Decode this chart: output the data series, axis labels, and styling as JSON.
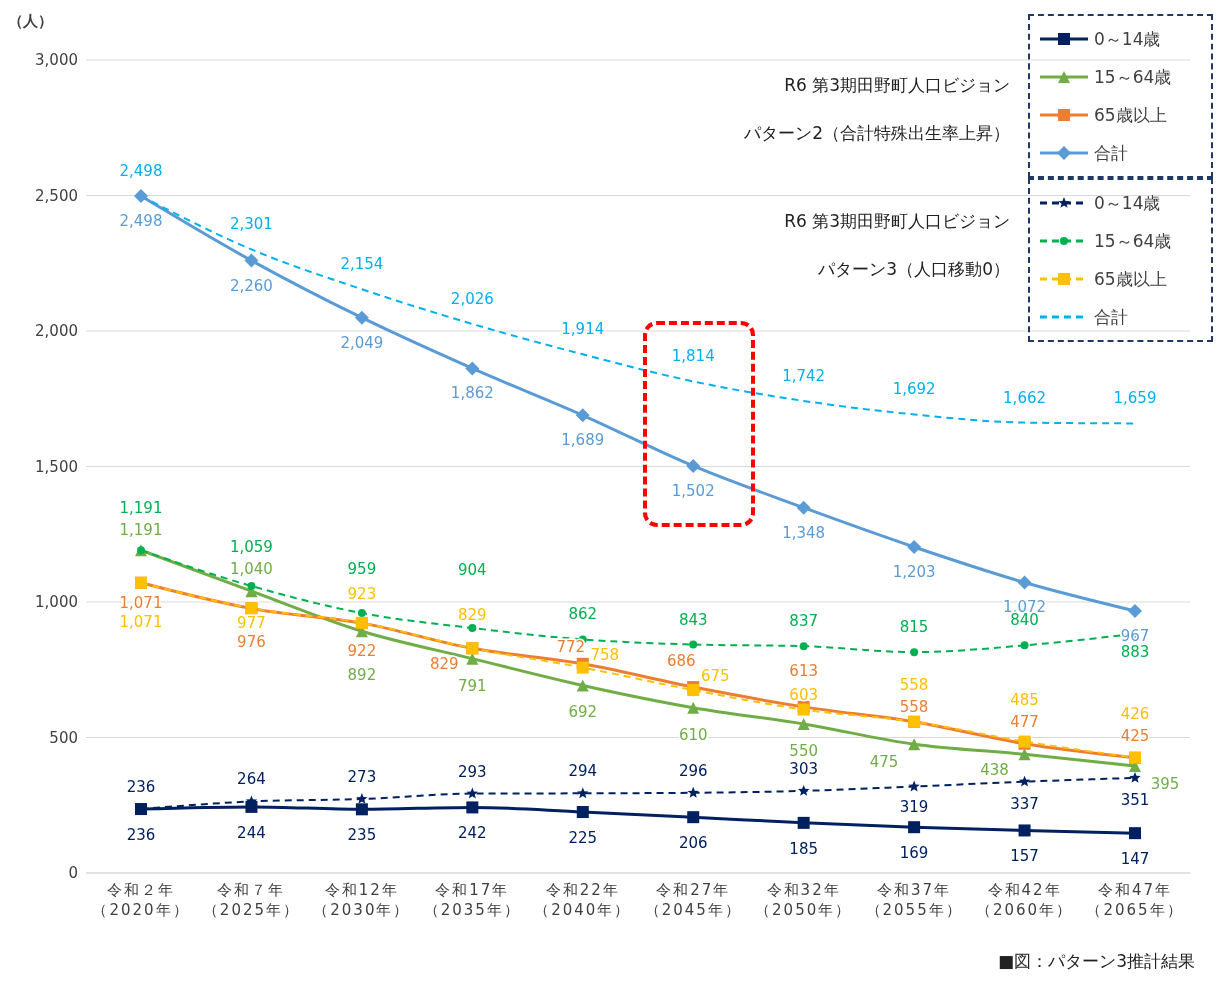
{
  "chart_data": {
    "type": "line",
    "ylabel": "（人）",
    "categories": [
      "令和２年（2020年）",
      "令和７年（2025年）",
      "令和12年（2030年）",
      "令和17年（2035年）",
      "令和22年（2040年）",
      "令和27年（2045年）",
      "令和32年（2050年）",
      "令和37年（2055年）",
      "令和42年（2060年）",
      "令和47年（2065年）"
    ],
    "series": [
      {
        "name": "0～14歳",
        "color": "#002060",
        "marker": "square",
        "line_style": "solid",
        "values": [
          236,
          244,
          235,
          242,
          225,
          206,
          185,
          169,
          157,
          147
        ],
        "value_labels": [
          "236",
          "244",
          "235",
          "242",
          "225",
          "206",
          "185",
          "169",
          "157",
          "147"
        ]
      },
      {
        "name": "15～64歳",
        "color": "#70ad47",
        "marker": "triangle",
        "line_style": "solid",
        "values": [
          1191,
          1040,
          892,
          791,
          692,
          610,
          550,
          475,
          438,
          395
        ],
        "value_labels": [
          "1,191",
          "1,040",
          "892",
          "791",
          "692",
          "610",
          "550",
          "475",
          "438",
          "395"
        ]
      },
      {
        "name": "65歳以上",
        "color": "#ed7d31",
        "marker": "square",
        "line_style": "solid",
        "values": [
          1071,
          976,
          922,
          829,
          772,
          686,
          613,
          558,
          477,
          425
        ],
        "value_labels": [
          "1,071",
          "976",
          "922",
          "829",
          "772",
          "686",
          "613",
          "558",
          "477",
          "425"
        ]
      },
      {
        "name": "合計",
        "color": "#5b9bd5",
        "marker": "diamond",
        "line_style": "solid",
        "values": [
          2498,
          2260,
          2049,
          1862,
          1689,
          1502,
          1348,
          1203,
          1072,
          967
        ],
        "value_labels": [
          "2,498",
          "2,260",
          "2,049",
          "1,862",
          "1,689",
          "1,502",
          "1,348",
          "1,203",
          "1,072",
          "967"
        ]
      },
      {
        "name": "0～14歳",
        "color": "#002060",
        "marker": "star",
        "line_style": "dashed",
        "values": [
          236,
          264,
          273,
          293,
          294,
          296,
          303,
          319,
          337,
          351
        ],
        "value_labels": [
          "236",
          "264",
          "273",
          "293",
          "294",
          "296",
          "303",
          "319",
          "337",
          "351"
        ]
      },
      {
        "name": "15～64歳",
        "color": "#00b050",
        "marker": "circle",
        "line_style": "dashed",
        "values": [
          1191,
          1059,
          959,
          904,
          862,
          843,
          837,
          815,
          840,
          883
        ],
        "value_labels": [
          "1,191",
          "1,059",
          "959",
          "904",
          "862",
          "843",
          "837",
          "815",
          "840",
          "883"
        ]
      },
      {
        "name": "65歳以上",
        "color": "#ffc000",
        "marker": "square",
        "line_style": "dashed",
        "values": [
          1071,
          977,
          923,
          829,
          758,
          675,
          603,
          558,
          485,
          426
        ],
        "value_labels": [
          "1,071",
          "977",
          "923",
          "829",
          "758",
          "675",
          "603",
          "558",
          "485",
          "426"
        ]
      },
      {
        "name": "合計",
        "color": "#00b0f0",
        "marker": "none",
        "line_style": "dashed",
        "values": [
          2498,
          2301,
          2154,
          2026,
          1914,
          1814,
          1742,
          1692,
          1662,
          1659
        ],
        "value_labels": [
          "2,498",
          "2,301",
          "2,154",
          "2,026",
          "1,914",
          "1,814",
          "1,742",
          "1,692",
          "1,662",
          "1,659"
        ]
      }
    ],
    "ylim": [
      0,
      3000
    ],
    "yticks": [
      0,
      500,
      {
        "value": 1000,
        "label": "1,000"
      },
      {
        "value": 1500,
        "label": "1,500"
      },
      {
        "value": 2000,
        "label": "2,000"
      },
      {
        "value": 2500,
        "label": "2,500"
      },
      {
        "value": 3000,
        "label": "3,000"
      }
    ],
    "grid": "y",
    "legend": "top right",
    "annotations": [
      "R6 第3期田野町人口ビジョン",
      "パターン2（合計特殊出生率上昇）",
      "R6 第3期田野町人口ビジョン",
      "パターン3（人口移動0）",
      "■図：パターン3推計結果"
    ]
  }
}
